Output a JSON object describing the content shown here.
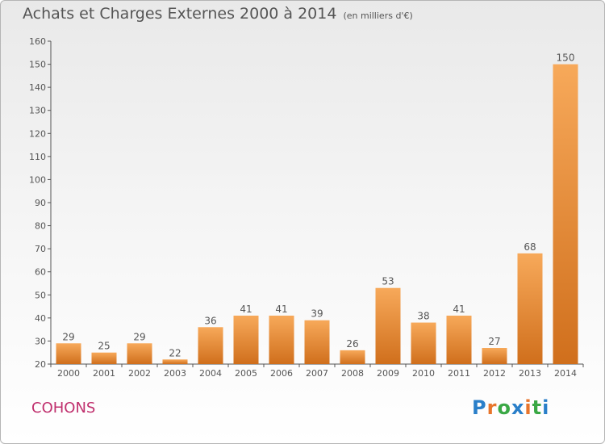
{
  "title": "Achats et Charges Externes 2000 à 2014",
  "subtitle": "(en milliers d'€)",
  "commune": "COHONS",
  "logo": {
    "text": "Proxiti",
    "letter_colors": [
      "#2a7fc9",
      "#e8752b",
      "#3aa845",
      "#2a7fc9",
      "#e8752b",
      "#3aa845",
      "#2a7fc9"
    ]
  },
  "colors": {
    "bar_light": "#f7a95a",
    "bar_dark": "#d06f1c",
    "text": "#555555",
    "commune": "#c0306e",
    "axis": "#555555"
  },
  "chart_data": {
    "type": "bar",
    "title": "Achats et Charges Externes 2000 à 2014",
    "subtitle": "(en milliers d'€)",
    "categories": [
      "2000",
      "2001",
      "2002",
      "2003",
      "2004",
      "2005",
      "2006",
      "2007",
      "2008",
      "2009",
      "2010",
      "2011",
      "2012",
      "2013",
      "2014"
    ],
    "values": [
      29,
      25,
      29,
      22,
      36,
      41,
      41,
      39,
      26,
      53,
      38,
      41,
      27,
      68,
      150
    ],
    "ylim": [
      20,
      160
    ],
    "yticks": [
      20,
      30,
      40,
      50,
      60,
      70,
      80,
      90,
      100,
      110,
      120,
      130,
      140,
      150,
      160
    ],
    "xlabel": "",
    "ylabel": "",
    "grid": false,
    "legend": "none"
  }
}
